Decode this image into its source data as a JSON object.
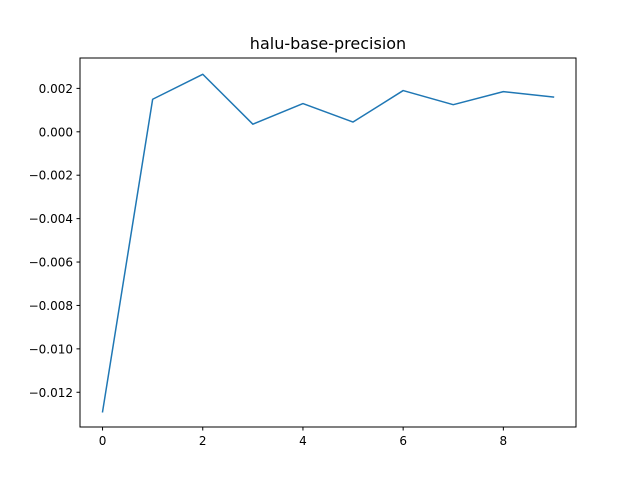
{
  "chart_data": {
    "type": "line",
    "title": "halu-base-precision",
    "xlabel": "",
    "ylabel": "",
    "xlim": [
      -0.45,
      9.45
    ],
    "ylim": [
      -0.0136,
      0.0034
    ],
    "xticks": [
      0,
      2,
      4,
      6,
      8
    ],
    "xtick_labels": [
      "0",
      "2",
      "4",
      "6",
      "8"
    ],
    "yticks": [
      -0.012,
      -0.01,
      -0.008,
      -0.006,
      -0.004,
      -0.002,
      0.0,
      0.002
    ],
    "ytick_labels": [
      "−0.012",
      "−0.010",
      "−0.008",
      "−0.006",
      "−0.004",
      "−0.002",
      "0.000",
      "0.002"
    ],
    "grid": false,
    "series": [
      {
        "color": "#1f77b4",
        "x": [
          0,
          1,
          2,
          3,
          4,
          5,
          6,
          7,
          8,
          9
        ],
        "y": [
          -0.0129,
          0.0015,
          0.00265,
          0.00035,
          0.0013,
          0.00045,
          0.0019,
          0.00125,
          0.00185,
          0.0016
        ]
      }
    ]
  }
}
